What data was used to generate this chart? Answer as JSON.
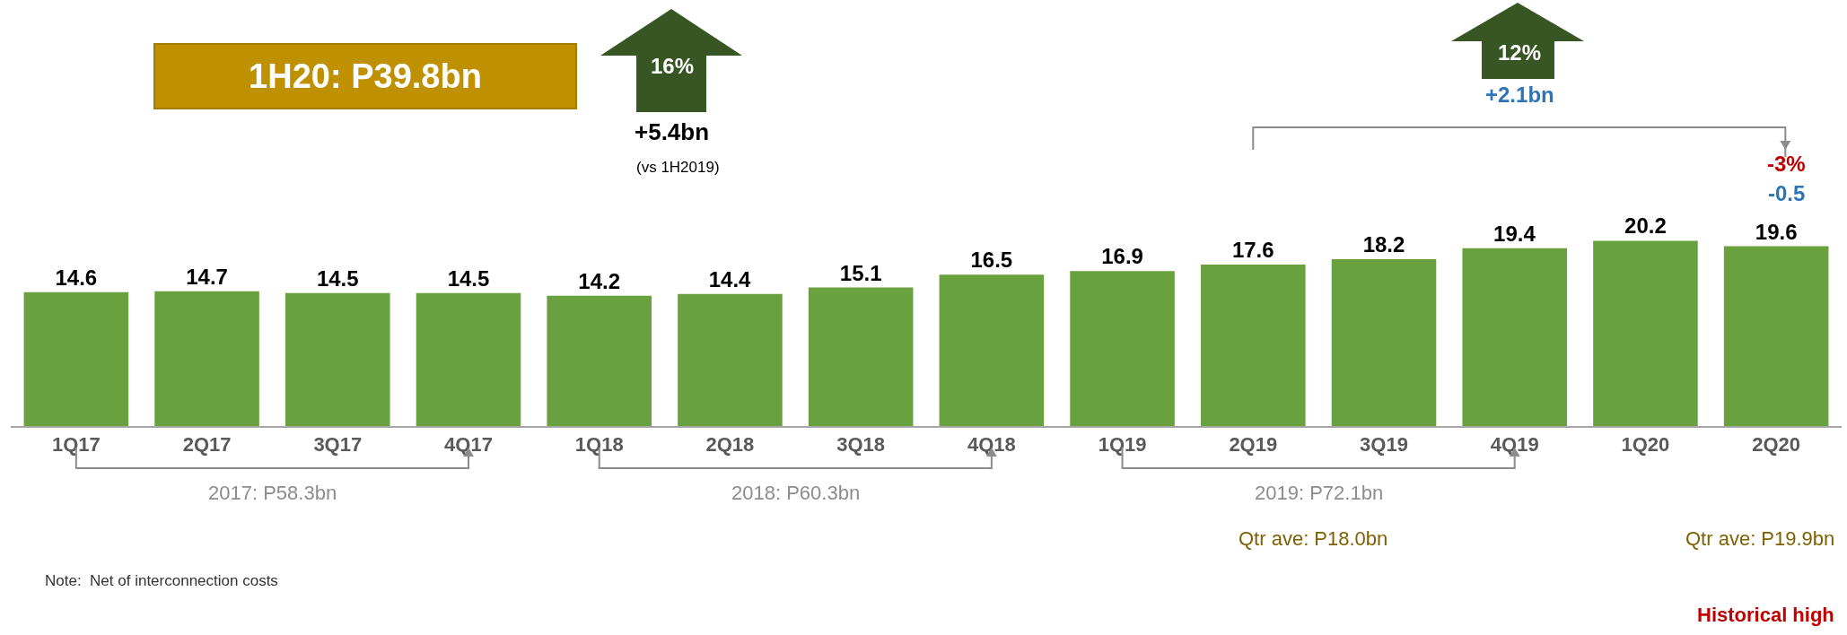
{
  "chart_data": {
    "type": "bar",
    "categories": [
      "1Q17",
      "2Q17",
      "3Q17",
      "4Q17",
      "1Q18",
      "2Q18",
      "3Q18",
      "4Q18",
      "1Q19",
      "2Q19",
      "3Q19",
      "4Q19",
      "1Q20",
      "2Q20"
    ],
    "values": [
      14.6,
      14.7,
      14.5,
      14.5,
      14.2,
      14.4,
      15.1,
      16.5,
      16.9,
      17.6,
      18.2,
      19.4,
      20.2,
      19.6
    ],
    "color": "#6aa13f",
    "data_labels": true,
    "legend": false,
    "annotations": [
      "1H20: P39.8bn",
      "16%",
      "+5.4bn",
      "(vs 1H2019)",
      "12%",
      "+2.1bn",
      "-3%",
      "-0.5",
      "2017: P58.3bn",
      "2018: P60.3bn",
      "2019: P72.1bn",
      "Qtr ave: P18.0bn",
      "Qtr ave: P19.9bn",
      "Historical high",
      "Note:  Net of interconnection costs"
    ]
  }
}
